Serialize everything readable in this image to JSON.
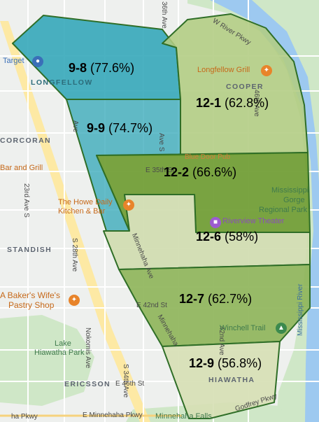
{
  "map": {
    "colors": {
      "background": "#eef0ee",
      "park": "#cfe7c7",
      "river": "#9dc9f0",
      "highway": "#fde9a4",
      "precinct_teal": "#2aa3b6",
      "precinct_green_light": "#b2cc82",
      "precinct_green_dark": "#6b9a2d",
      "precinct_green_pale": "#cfdcae",
      "precinct_border": "#2f6e27"
    },
    "precincts": [
      {
        "id": "9-8",
        "share": "(77.6%)",
        "value": 77.6
      },
      {
        "id": "9-9",
        "share": "(74.7%)",
        "value": 74.7
      },
      {
        "id": "12-1",
        "share": "(62.8%)",
        "value": 62.8
      },
      {
        "id": "12-2",
        "share": "(66.6%)",
        "value": 66.6
      },
      {
        "id": "12-6",
        "share": "(58%)",
        "value": 58
      },
      {
        "id": "12-7",
        "share": "(62.7%)",
        "value": 62.7
      },
      {
        "id": "12-9",
        "share": "(56.8%)",
        "value": 56.8
      }
    ],
    "neighborhoods": {
      "longfellow": "LONGFELLOW",
      "cooper": "COOPER",
      "corcoran": "CORCORAN",
      "standish": "STANDISH",
      "hiawatha": "HIAWATHA",
      "ericsson": "ERICSSON"
    },
    "streets": {
      "w_river_pkwy": "W River Pkwy",
      "e_35th": "E 35th St",
      "e_42nd": "E 42nd St",
      "e_46th": "E 46th St",
      "minnehaha_ave": "Minnehaha Ave",
      "minnehaha_ave_2": "Minnehaha",
      "e_minnehaha_pkwy": "E Minnehaha Pkwy",
      "ha_pkwy": "ha Pkwy",
      "ave_36th": "36th Ave",
      "ave_23rd": "23rd Ave S",
      "ave_28th": "S 28th Ave",
      "nokomis_ave": "Nokomis Ave",
      "ave_34th": "S 34th Ave",
      "ave_42nd": "42nd Ave",
      "ave_46th": "46th Ave",
      "ave_e": "Ave",
      "ave_s": "Ave S",
      "godfrey": "Godfrey Pkwy"
    },
    "pois": {
      "target": "Target",
      "longfellow_grill": "Longfellow Grill",
      "blue_door": "Blue Door Pub",
      "bar_grill": "Bar and Grill",
      "howe_line1": "The Howe Daily",
      "howe_line2": "Kitchen & Bar",
      "riverview": "Riverview Theater",
      "bakers_line1": "A Baker's Wife's",
      "bakers_line2": "Pastry Shop",
      "winchell": "Winchell Trail",
      "lake_line1": "Lake",
      "lake_line2": "Hiawatha Park",
      "mississippi_line1": "Mississippi",
      "mississippi_line2": "Gorge",
      "regional_park": "Regional Park",
      "mississippi_river": "Mississippi River",
      "minnehaha_falls": "Minnehaha Falls"
    }
  }
}
